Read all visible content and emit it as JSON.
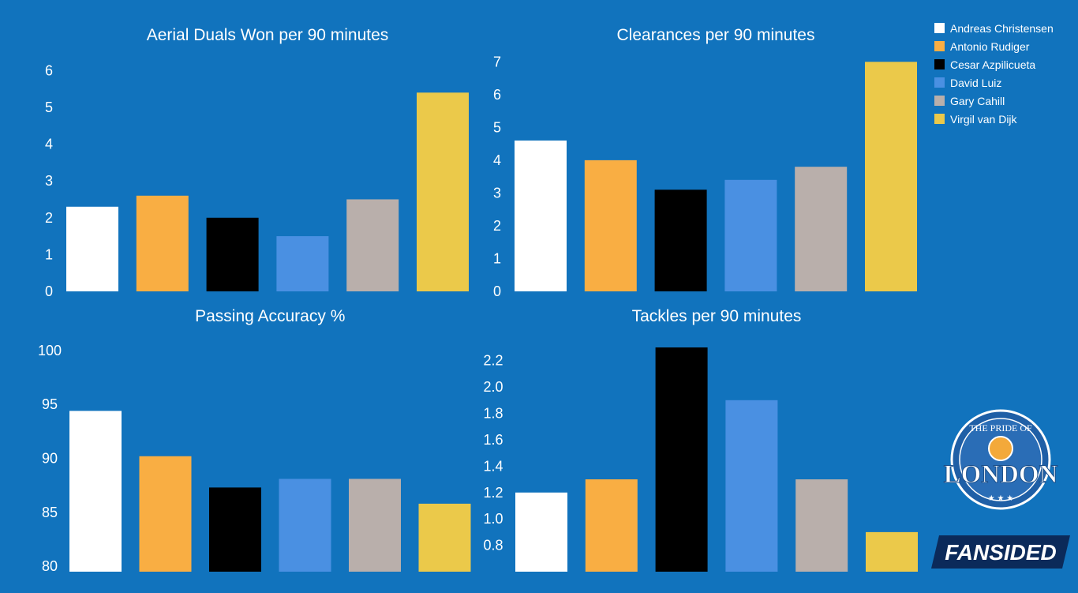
{
  "legend": [
    {
      "label": "Andreas Christensen",
      "color": "#ffffff"
    },
    {
      "label": "Antonio Rudiger",
      "color": "#f9ae43"
    },
    {
      "label": "Cesar Azpilicueta",
      "color": "#000000"
    },
    {
      "label": "David Luiz",
      "color": "#4a90e2"
    },
    {
      "label": "Gary Cahill",
      "color": "#b9afab"
    },
    {
      "label": "Virgil van Dijk",
      "color": "#ebc94a"
    }
  ],
  "branding": {
    "pride_logo_text": "THE PRIDE OF",
    "pride_logo_main": "LONDON",
    "fansided_text": "FANSIDED"
  },
  "chart_data": [
    {
      "type": "bar",
      "title": "Aerial Duals Won per 90 minutes",
      "categories": [
        "Andreas Christensen",
        "Antonio Rudiger",
        "Cesar Azpilicueta",
        "David Luiz",
        "Gary Cahill",
        "Virgil van Dijk"
      ],
      "values": [
        2.3,
        2.6,
        2.0,
        1.5,
        2.5,
        5.4
      ],
      "ticks": [
        "0",
        "1",
        "2",
        "3",
        "4",
        "5",
        "6"
      ],
      "ylim": [
        0,
        6.2
      ]
    },
    {
      "type": "bar",
      "title": "Clearances per 90 minutes",
      "categories": [
        "Andreas Christensen",
        "Antonio Rudiger",
        "Cesar Azpilicueta",
        "David Luiz",
        "Gary Cahill",
        "Virgil van Dijk"
      ],
      "values": [
        4.6,
        4.0,
        3.1,
        3.4,
        3.8,
        7.0
      ],
      "ticks": [
        "0",
        "1",
        "2",
        "3",
        "4",
        "5",
        "6",
        "7"
      ],
      "ylim": [
        0,
        7.2
      ]
    },
    {
      "type": "bar",
      "title": "Passing Accuracy %",
      "categories": [
        "Andreas Christensen",
        "Antonio Rudiger",
        "Cesar Azpilicueta",
        "David Luiz",
        "Gary Cahill",
        "Virgil van Dijk"
      ],
      "values": [
        94.4,
        90.2,
        87.3,
        88.1,
        88.1,
        85.8
      ],
      "ticks": [
        "80",
        "85",
        "90",
        "95",
        "100"
      ],
      "ylim": [
        79.5,
        100.5
      ]
    },
    {
      "type": "bar",
      "title": "Tackles per 90 minutes",
      "categories": [
        "Andreas Christensen",
        "Antonio Rudiger",
        "Cesar Azpilicueta",
        "David Luiz",
        "Gary Cahill",
        "Virgil van Dijk"
      ],
      "values": [
        1.2,
        1.3,
        2.3,
        1.9,
        1.3,
        0.9
      ],
      "ticks": [
        "0.8",
        "1.0",
        "1.2",
        "1.4",
        "1.6",
        "1.8",
        "2.0",
        "2.2"
      ],
      "ylim": [
        0.6,
        2.3
      ]
    }
  ]
}
